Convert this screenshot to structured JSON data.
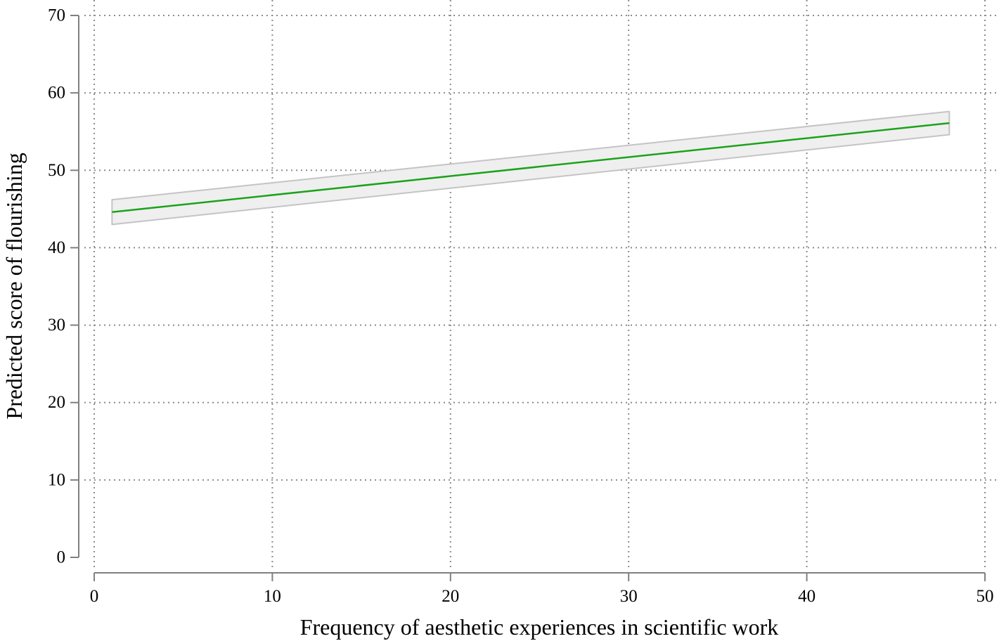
{
  "chart_data": {
    "type": "line",
    "title": "",
    "xlabel": "Frequency of aesthetic experiences in scientific work",
    "ylabel": "Predicted score of flourishing",
    "xlim": [
      0,
      50
    ],
    "ylim": [
      0,
      70
    ],
    "x_ticks": [
      0,
      10,
      20,
      30,
      40,
      50
    ],
    "y_ticks": [
      0,
      10,
      20,
      30,
      40,
      50,
      60,
      70
    ],
    "grid": true,
    "legend": "none",
    "series": [
      {
        "x": [
          1,
          48
        ],
        "y": [
          44.6,
          56.1
        ],
        "ci_lower": [
          43.0,
          54.6
        ],
        "ci_upper": [
          46.2,
          57.6
        ],
        "color": "#1aa31a",
        "band_color": "#efefef"
      }
    ]
  }
}
